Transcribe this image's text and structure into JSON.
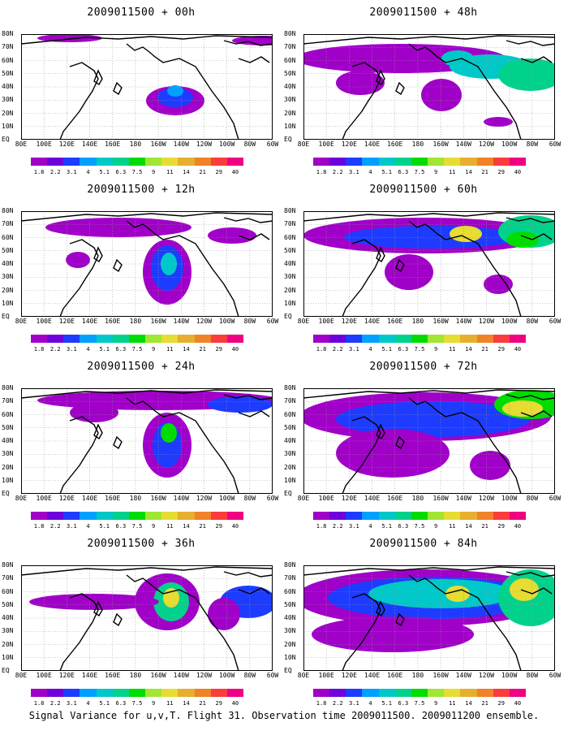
{
  "panels": [
    {
      "title": "2009011500 + 00h"
    },
    {
      "title": "2009011500 + 48h"
    },
    {
      "title": "2009011500 + 12h"
    },
    {
      "title": "2009011500 + 60h"
    },
    {
      "title": "2009011500 + 24h"
    },
    {
      "title": "2009011500 + 72h"
    },
    {
      "title": "2009011500 + 36h"
    },
    {
      "title": "2009011500 + 84h"
    }
  ],
  "lat_labels": [
    "80N",
    "70N",
    "60N",
    "50N",
    "40N",
    "30N",
    "20N",
    "10N",
    "EQ"
  ],
  "lon_labels": [
    "80E",
    "100E",
    "120E",
    "140E",
    "160E",
    "180",
    "160W",
    "140W",
    "120W",
    "100W",
    "80W",
    "60W"
  ],
  "colorbar": {
    "labels": [
      "1.8",
      "2.2",
      "3.1",
      "4",
      "5.1",
      "6.3",
      "7.5",
      "9",
      "11",
      "14",
      "21",
      "29",
      "40"
    ],
    "colors": [
      "#a000c8",
      "#6e00dc",
      "#1e3cff",
      "#00a0ff",
      "#00c8c8",
      "#00d28c",
      "#00dc00",
      "#a0e632",
      "#e6dc32",
      "#e6af2d",
      "#f08228",
      "#fa3c3c",
      "#f00082"
    ]
  },
  "footer": "Signal Variance for u,v,T. Flight 31. Observation time 2009011500. 2009011200 ensemble."
}
